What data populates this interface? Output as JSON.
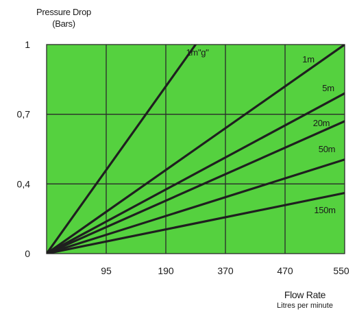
{
  "chart_data": {
    "type": "line",
    "ylabel": "Pressure Drop",
    "ylabel_unit": "(Bars)",
    "xlabel": "Flow Rate",
    "xlabel_unit": "Litres per minute",
    "x_ticks": [
      "0",
      "95",
      "190",
      "370",
      "470",
      "550"
    ],
    "y_ticks": [
      "0",
      "0,4",
      "0,7",
      "1"
    ],
    "x_tick_index_range": [
      0,
      5
    ],
    "y_axis_note": "y-axis is non-linear: 0, 0,4, 0,7, 1 are evenly spaced gridlines",
    "y_tick_values": [
      0,
      0.4,
      0.7,
      1
    ],
    "grid": true,
    "background_color": "#55d13f",
    "line_color": "#1f1f1f",
    "grid_color": "#2a2a2a",
    "series": [
      {
        "name": "1m\"g\"",
        "end": {
          "x_index": 2.5,
          "y_index": 3.0
        }
      },
      {
        "name": "1m",
        "end": {
          "x_index": 5.0,
          "y_index": 3.0
        }
      },
      {
        "name": "5m",
        "end": {
          "x_index": 5.0,
          "y_index": 2.3
        }
      },
      {
        "name": "20m",
        "end": {
          "x_index": 5.0,
          "y_index": 1.9
        }
      },
      {
        "name": "50m",
        "end": {
          "x_index": 5.0,
          "y_index": 1.35
        }
      },
      {
        "name": "150m",
        "end": {
          "x_index": 5.0,
          "y_index": 0.87
        }
      }
    ]
  }
}
